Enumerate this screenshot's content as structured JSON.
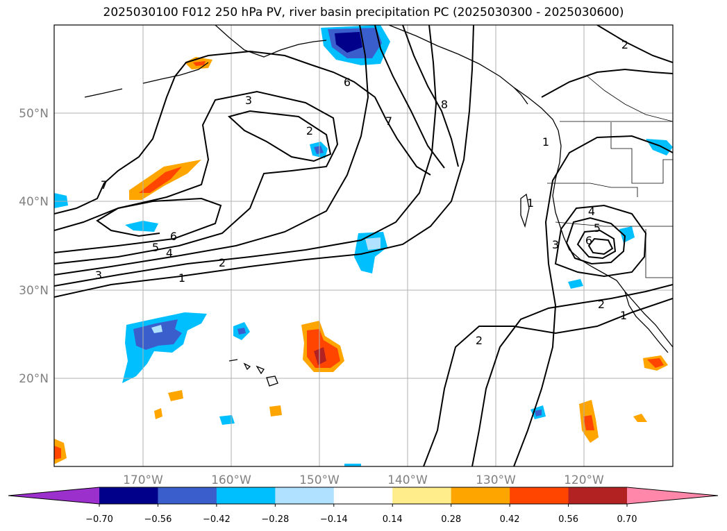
{
  "title": "2025030100 F012 250 hPa PV, river basin precipitation PC (2025030300 - 2025030600)",
  "map": {
    "lon_range": [
      -180,
      -110
    ],
    "lat_range": [
      10,
      60
    ],
    "lat_labels": [
      "20°N",
      "30°N",
      "40°N",
      "50°N"
    ],
    "lon_labels": [
      "170°W",
      "160°W",
      "150°W",
      "140°W",
      "130°W",
      "120°W"
    ],
    "gridlines": true,
    "coastline_color": "#000000",
    "pv_contour_labels": [
      "1",
      "2",
      "3",
      "4",
      "5",
      "6",
      "7",
      "8"
    ]
  },
  "colorbar": {
    "ticks": [
      "−0.70",
      "−0.56",
      "−0.42",
      "−0.28",
      "−0.14",
      "0.14",
      "0.28",
      "0.42",
      "0.56",
      "0.70"
    ],
    "colors": [
      "#9b30cc",
      "#00008b",
      "#3a5fcd",
      "#00bfff",
      "#b0e2ff",
      "#ffffff",
      "#ffec8b",
      "#ffa500",
      "#ff4500",
      "#b22222",
      "#ff88aa"
    ]
  }
}
